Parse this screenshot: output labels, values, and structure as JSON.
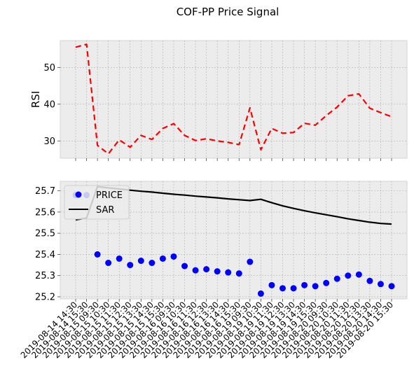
{
  "chart_data": {
    "title": "COF-PP Price Signal",
    "type": "line",
    "categories": [
      "2019-08-14 14:30",
      "2019-08-14 15:30",
      "2019-08-15 09:30",
      "2019-08-15 10:30",
      "2019-08-15 11:30",
      "2019-08-15 12:30",
      "2019-08-15 13:30",
      "2019-08-15 14:30",
      "2019-08-15 15:30",
      "2019-08-16 09:30",
      "2019-08-16 10:30",
      "2019-08-16 11:30",
      "2019-08-16 12:30",
      "2019-08-16 13:30",
      "2019-08-16 14:30",
      "2019-08-16 15:30",
      "2019-08-19 09:30",
      "2019-08-19 10:30",
      "2019-08-19 11:30",
      "2019-08-19 12:30",
      "2019-08-19 13:30",
      "2019-08-19 14:30",
      "2019-08-19 15:30",
      "2019-08-20 09:30",
      "2019-08-20 10:30",
      "2019-08-20 11:30",
      "2019-08-20 12:30",
      "2019-08-20 13:30",
      "2019-08-20 14:30",
      "2019-08-20 15:30"
    ],
    "panels": [
      {
        "ylabel": "RSI",
        "ylim": [
          25.3,
          57.3
        ],
        "yticks": [
          "30",
          "40",
          "50"
        ],
        "grid": true,
        "series": [
          {
            "type": "line",
            "style": "dashed",
            "color": "#ff0000",
            "values": [
              55.5,
              56.3,
              28.8,
              26.5,
              30.3,
              28.3,
              31.5,
              30.4,
              33.4,
              34.7,
              31.5,
              30.1,
              30.6,
              30.0,
              29.6,
              29.0,
              39.0,
              27.6,
              33.4,
              32.1,
              32.3,
              34.8,
              34.3,
              36.9,
              39.2,
              42.3,
              42.8,
              38.9,
              37.7,
              36.6
            ]
          }
        ]
      },
      {
        "ylabel": "",
        "ylim": [
          25.19,
          25.745
        ],
        "yticks": [
          "25.2",
          "25.3",
          "25.4",
          "25.5",
          "25.6",
          "25.7"
        ],
        "grid": true,
        "legend": {
          "placement": "top-left",
          "entries": [
            "PRICE",
            "SAR"
          ]
        },
        "series": [
          {
            "name": "PRICE",
            "type": "scatter",
            "color": "#0000ff",
            "values": [
              25.68,
              25.68,
              25.4,
              25.36,
              25.38,
              25.35,
              25.37,
              25.36,
              25.38,
              25.39,
              25.345,
              25.325,
              25.33,
              25.32,
              25.315,
              25.31,
              25.365,
              25.215,
              25.255,
              25.24,
              25.24,
              25.255,
              25.25,
              25.265,
              25.285,
              25.3,
              25.305,
              25.275,
              25.26,
              25.25
            ]
          },
          {
            "name": "SAR",
            "type": "line",
            "color": "#000000",
            "values": [
              25.563,
              25.572,
              25.72,
              25.714,
              25.709,
              25.703,
              25.698,
              25.694,
              25.689,
              25.684,
              25.68,
              25.675,
              25.671,
              25.667,
              25.662,
              25.658,
              25.654,
              25.66,
              25.644,
              25.629,
              25.617,
              25.606,
              25.596,
              25.587,
              25.578,
              25.568,
              25.56,
              25.552,
              25.546,
              25.543
            ]
          }
        ]
      }
    ]
  }
}
